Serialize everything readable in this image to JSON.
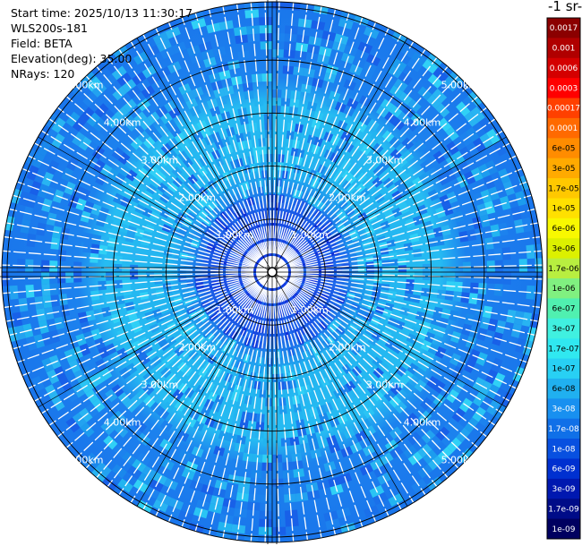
{
  "info": {
    "start_time": "Start time: 2025/10/13 11:30:17",
    "instrument": "WLS200s-181",
    "field": "Field: BETA",
    "elevation": "Elevation(deg): 35.00",
    "nrays": "NRays: 120"
  },
  "colorbar": {
    "unit_fragment": "-1 sr-",
    "labels": [
      "0.0017",
      "0.001",
      "0.0006",
      "0.0003",
      "0.00017",
      "0.0001",
      "6e-05",
      "3e-05",
      "1.7e-05",
      "1e-05",
      "6e-06",
      "3e-06",
      "1.7e-06",
      "1e-06",
      "6e-07",
      "3e-07",
      "1.7e-07",
      "1e-07",
      "6e-08",
      "3e-08",
      "1.7e-08",
      "1e-08",
      "6e-09",
      "3e-09",
      "1.7e-09",
      "1e-09"
    ],
    "colors": [
      "#8b0000",
      "#b00000",
      "#d40000",
      "#ff0000",
      "#ff4000",
      "#ff6a00",
      "#ff8c00",
      "#ffaa00",
      "#ffc800",
      "#ffe000",
      "#f8f800",
      "#dcf000",
      "#b8ee40",
      "#80f080",
      "#50f0b0",
      "#40f0e0",
      "#30e8f0",
      "#28d0f4",
      "#20b0f0",
      "#1890f0",
      "#1070e8",
      "#0850e0",
      "#0030d0",
      "#0018b0",
      "#000c88",
      "#000060"
    ]
  },
  "chart_data": {
    "type": "ppi",
    "title": "",
    "field": "BETA",
    "elevation_deg": 35.0,
    "n_rays": 120,
    "range_rings_km": [
      1,
      2,
      3,
      4,
      5
    ],
    "ring_labels": [
      "1.00km",
      "2.00km",
      "3.00km",
      "4.00km",
      "5.00km"
    ],
    "max_range_km": 5.1,
    "dominant_values": {
      "near_center_km_0_to_1.5": "1e-08 to 3e-08",
      "mid_km_1.5_to_3.5": "6e-08 to 1e-07",
      "outer_km_3.5_to_5.1": "3e-08 to 6e-08"
    }
  },
  "palette": {
    "background": "#ffffff",
    "inner": "#1a55e6",
    "mid": "#22b4f0",
    "outer": "#1c82ee",
    "grid": "#000000",
    "ray_gap": "#ffffff"
  }
}
